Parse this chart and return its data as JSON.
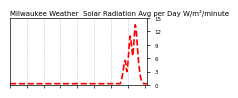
{
  "title": "Milwaukee Weather  Solar Radiation Avg per Day W/m²/minute",
  "line_color": "red",
  "line_style": "--",
  "line_width": 1.2,
  "background_color": "#ffffff",
  "grid_color": "#aaaaaa",
  "x_values": [
    0,
    1,
    2,
    3,
    4,
    5,
    6,
    7,
    8,
    9,
    10,
    11,
    12,
    13,
    14,
    15,
    16,
    17,
    18,
    19,
    20,
    21,
    22,
    23,
    24,
    25,
    26,
    27,
    28,
    29,
    30,
    31,
    32,
    33,
    34,
    35,
    36,
    37,
    38,
    39,
    40,
    41,
    42,
    43,
    44,
    45,
    46,
    47,
    48,
    49,
    50,
    51,
    52,
    53,
    54,
    55,
    56,
    57,
    58,
    59,
    60,
    61,
    62,
    63,
    64,
    65,
    66,
    67,
    68,
    69,
    70,
    71,
    72,
    73,
    74,
    75,
    76,
    77,
    78,
    79,
    80,
    81,
    82,
    83,
    84,
    85,
    86,
    87,
    88,
    89,
    90,
    91,
    92,
    93,
    94,
    95,
    96,
    97,
    98,
    99,
    100,
    101,
    102,
    103,
    104,
    105,
    106,
    107,
    108,
    109,
    110,
    111,
    112,
    113,
    114,
    115,
    116,
    117,
    118,
    119,
    120,
    121,
    122,
    123,
    124,
    125,
    126,
    127,
    128,
    129,
    130,
    131,
    132,
    133,
    134,
    135,
    136,
    137,
    138,
    139,
    140,
    141,
    142,
    143,
    144,
    145,
    146,
    147,
    148,
    149,
    150,
    151,
    152,
    153,
    154,
    155,
    156,
    157,
    158,
    159,
    160,
    161,
    162,
    163
  ],
  "y_values": [
    0.3,
    0.3,
    0.3,
    0.3,
    0.3,
    0.3,
    0.3,
    0.3,
    0.3,
    0.3,
    0.3,
    0.3,
    0.3,
    0.3,
    0.3,
    0.3,
    0.3,
    0.3,
    0.3,
    0.3,
    0.3,
    0.3,
    0.3,
    0.3,
    0.3,
    0.3,
    0.3,
    0.3,
    0.3,
    0.3,
    0.3,
    0.3,
    0.3,
    0.3,
    0.3,
    0.3,
    0.3,
    0.3,
    0.3,
    0.3,
    0.3,
    0.3,
    0.3,
    0.3,
    0.3,
    0.3,
    0.3,
    0.3,
    0.3,
    0.3,
    0.3,
    0.3,
    0.3,
    0.3,
    0.3,
    0.3,
    0.3,
    0.3,
    0.3,
    0.3,
    0.3,
    0.3,
    0.3,
    0.3,
    0.3,
    0.3,
    0.3,
    0.3,
    0.3,
    0.3,
    0.3,
    0.3,
    0.3,
    0.3,
    0.3,
    0.3,
    0.3,
    0.3,
    0.3,
    0.3,
    0.3,
    0.3,
    0.3,
    0.3,
    0.3,
    0.3,
    0.3,
    0.3,
    0.3,
    0.3,
    0.3,
    0.3,
    0.3,
    0.3,
    0.3,
    0.3,
    0.3,
    0.3,
    0.3,
    0.3,
    0.3,
    0.3,
    0.3,
    0.3,
    0.3,
    0.3,
    0.3,
    0.3,
    0.3,
    0.3,
    0.3,
    0.3,
    0.3,
    0.3,
    0.3,
    0.3,
    0.3,
    0.3,
    0.3,
    0.3,
    0.3,
    0.3,
    0.3,
    0.3,
    0.3,
    0.3,
    0.3,
    0.3,
    0.3,
    0.3,
    0.3,
    0.3,
    0.8,
    1.5,
    2.5,
    3.8,
    5.0,
    5.5,
    4.2,
    3.0,
    4.5,
    6.8,
    9.5,
    11.0,
    9.8,
    8.0,
    6.5,
    8.5,
    11.5,
    13.5,
    12.5,
    10.0,
    7.5,
    5.0,
    3.5,
    2.0,
    1.2,
    0.8,
    0.5,
    0.3,
    0.3,
    0.3,
    0.3,
    0.3
  ],
  "ylim": [
    0,
    15
  ],
  "xlim": [
    0,
    163
  ],
  "yticks": [
    0,
    3,
    6,
    9,
    12,
    15
  ],
  "ytick_labels": [
    "0",
    "3",
    "6",
    "9",
    "12",
    "15"
  ],
  "xtick_positions": [
    0,
    20,
    40,
    60,
    80,
    100,
    120,
    140,
    160
  ],
  "vgrid_positions": [
    20,
    40,
    60,
    80,
    100,
    120,
    140
  ],
  "title_fontsize": 5,
  "tick_fontsize": 4
}
